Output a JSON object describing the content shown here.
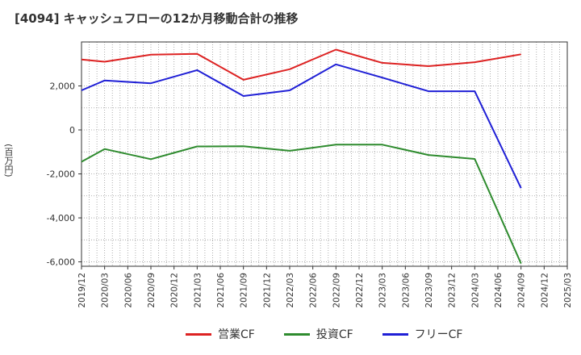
{
  "chart_data": {
    "type": "line",
    "title": "[4094]  キャッシュフローの12か月移動合計の推移",
    "ylabel": "(百万円)",
    "ylim": [
      -6200,
      4000
    ],
    "yticks": [
      2000,
      0,
      -2000,
      -4000,
      -6000
    ],
    "ytick_labels": [
      "2,000",
      "0",
      "-2,000",
      "-4,000",
      "-6,000"
    ],
    "categories": [
      "2019/12",
      "2020/03",
      "2020/06",
      "2020/09",
      "2020/12",
      "2021/03",
      "2021/06",
      "2021/09",
      "2021/12",
      "2022/03",
      "2022/06",
      "2022/09",
      "2022/12",
      "2023/03",
      "2023/06",
      "2023/09",
      "2023/12",
      "2024/03",
      "2024/06",
      "2024/09",
      "2024/12",
      "2025/03"
    ],
    "series": [
      {
        "name": "営業CF",
        "color": "#dd2222",
        "values": [
          3200,
          3100,
          null,
          3420,
          null,
          3460,
          null,
          2280,
          null,
          2760,
          null,
          3650,
          null,
          3050,
          null,
          2900,
          null,
          3080,
          null,
          3440,
          null,
          null
        ]
      },
      {
        "name": "投資CF",
        "color": "#2e8b2e",
        "values": [
          -1450,
          -870,
          null,
          -1330,
          null,
          -750,
          null,
          -740,
          null,
          -950,
          null,
          -670,
          null,
          -670,
          null,
          -1140,
          null,
          -1320,
          null,
          -6080,
          null,
          null
        ]
      },
      {
        "name": "フリーCF",
        "color": "#1f1fd6",
        "values": [
          1800,
          2250,
          null,
          2120,
          null,
          2720,
          null,
          1540,
          null,
          1800,
          null,
          2980,
          null,
          2380,
          null,
          1760,
          null,
          1760,
          null,
          -2650,
          null,
          null
        ]
      }
    ],
    "grid": true
  }
}
